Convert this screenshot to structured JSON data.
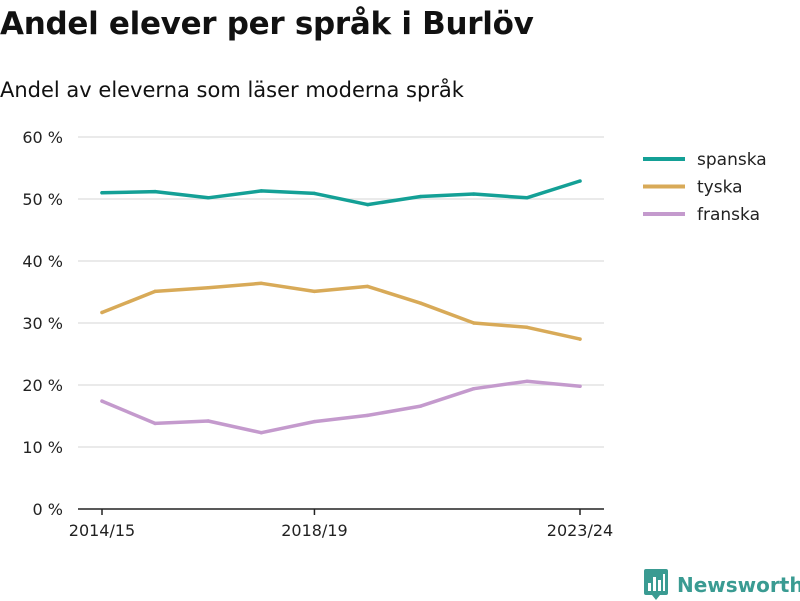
{
  "title": "Andel elever per språk i Burlöv",
  "subtitle": "Andel av eleverna som läser moderna språk",
  "brand": {
    "name": "Newsworthy",
    "icon": "newsworthy-bar-chart-icon",
    "color": "#3a9b92"
  },
  "chart_data": {
    "type": "line",
    "x": [
      "2014/15",
      "2015/16",
      "2016/17",
      "2017/18",
      "2018/19",
      "2019/20",
      "2020/21",
      "2021/22",
      "2022/23",
      "2023/24"
    ],
    "x_tick_labels": [
      "2014/15",
      "2018/19",
      "2023/24"
    ],
    "y_ticks": [
      0,
      10,
      20,
      30,
      40,
      50,
      60
    ],
    "y_tick_labels": [
      "0 %",
      "10 %",
      "20 %",
      "30 %",
      "40 %",
      "50 %",
      "60 %"
    ],
    "ylim": [
      0,
      60
    ],
    "grid": true,
    "legend_position": "right",
    "series": [
      {
        "name": "spanska",
        "color": "#14a096",
        "values": [
          51.0,
          51.2,
          50.2,
          51.3,
          50.9,
          49.1,
          50.4,
          50.8,
          50.2,
          52.9
        ]
      },
      {
        "name": "tyska",
        "color": "#d8aa58",
        "values": [
          31.7,
          35.1,
          35.7,
          36.4,
          35.1,
          35.9,
          33.2,
          30.0,
          29.3,
          27.4
        ]
      },
      {
        "name": "franska",
        "color": "#c49acd",
        "values": [
          17.4,
          13.8,
          14.2,
          12.3,
          14.1,
          15.1,
          16.6,
          19.4,
          20.6,
          19.8
        ]
      }
    ]
  }
}
